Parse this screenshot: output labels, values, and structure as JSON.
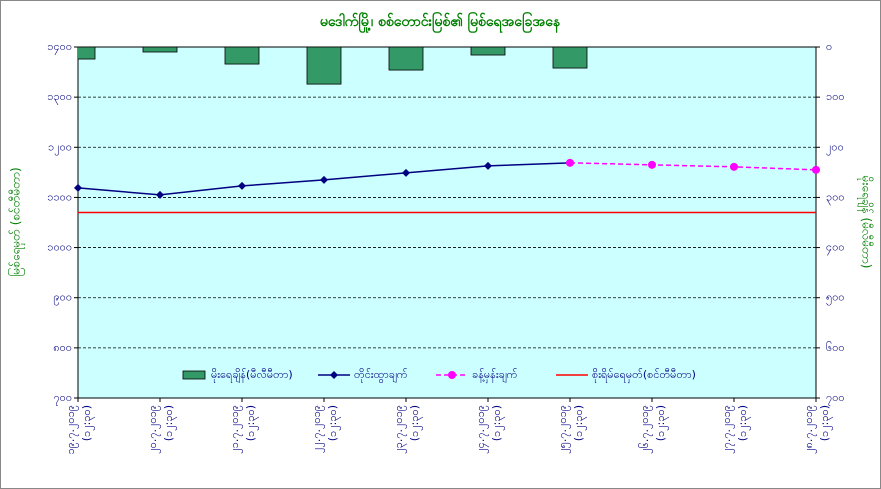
{
  "chart_data": {
    "type": "combo",
    "title": "မဒေါက်မြို့၊ စစ်တောင်းမြစ်၏ မြစ်ရေအခြေအနေ",
    "ylabel": "မြစ်ရေမှတ် (စင်တီမီတာ)",
    "y2label": "မိုးရေချိန် (မီလီမီတာ)",
    "categories": [
      [
        "၁၉.၇.၂၀၁၉",
        "(၁၂:၃၀)"
      ],
      [
        "၂၀.၇.၂၀၁၉",
        "(၁၂:၃၀)"
      ],
      [
        "၂၁.၇.၂၀၁၉",
        "(၁၂:၃၀)"
      ],
      [
        "၂၂.၇.၂၀၁၉",
        "(၁၂:၃၀)"
      ],
      [
        "၂၃.၇.၂၀၁၉",
        "(၁၂:၃၀)"
      ],
      [
        "၂၄.၇.၂၀၁၉",
        "(၁၂:၃၀)"
      ],
      [
        "၂၅.၇.၂၀၁၉",
        "(၁၂:၃၀)"
      ],
      [
        "၂၆.၇.၂၀၁၉",
        "(၁၂:၃၀)"
      ],
      [
        "၂၇.၇.၂၀၁၉",
        "(၁၂:၃၀)"
      ],
      [
        "၂၈.၇.၂၀၁၉",
        "(၁၂:၃၀)"
      ]
    ],
    "ylim": [
      700,
      1400
    ],
    "yticks": [
      {
        "value": 700,
        "label": "၇၀၀"
      },
      {
        "value": 800,
        "label": "၈၀၀"
      },
      {
        "value": 900,
        "label": "၉၀၀"
      },
      {
        "value": 1000,
        "label": "၁၀၀၀"
      },
      {
        "value": 1100,
        "label": "၁၁၀၀"
      },
      {
        "value": 1200,
        "label": "၁၂၀၀"
      },
      {
        "value": 1300,
        "label": "၁၃၀၀"
      },
      {
        "value": 1400,
        "label": "၁၄၀၀"
      }
    ],
    "y2lim": [
      700,
      0
    ],
    "y2ticks": [
      {
        "value": 0,
        "label": "၀"
      },
      {
        "value": 100,
        "label": "၁၀၀"
      },
      {
        "value": 200,
        "label": "၂၀၀"
      },
      {
        "value": 300,
        "label": "၃၀၀"
      },
      {
        "value": 400,
        "label": "၄၀၀"
      },
      {
        "value": 500,
        "label": "၅၀၀"
      },
      {
        "value": 600,
        "label": "၆၀၀"
      },
      {
        "value": 700,
        "label": "၇၀၀"
      }
    ],
    "grid": true,
    "series": [
      {
        "name": "မိုးရေချိန်(မီလီမီတာ)",
        "kind": "bar",
        "axis": "y2",
        "color": "#339966",
        "values": [
          24,
          10,
          34,
          74,
          46,
          16,
          42,
          null,
          null,
          null
        ]
      },
      {
        "name": "တိုင်းထွာချက်",
        "kind": "line",
        "color": "#000080",
        "values": [
          1119,
          1105,
          1123,
          1135,
          1149,
          1163,
          1169,
          null,
          null,
          null
        ]
      },
      {
        "name": "ခန့်မှန်းချက်",
        "kind": "dashed",
        "color": "#ff00ff",
        "values": [
          null,
          null,
          null,
          null,
          null,
          null,
          1169,
          1165,
          1161,
          1155
        ]
      },
      {
        "name": "စိုးရိမ်ရေမှတ်(စင်တီမီတာ)",
        "kind": "level",
        "color": "#ff0000",
        "values": [
          1070,
          1070,
          1070,
          1070,
          1070,
          1070,
          1070,
          1070,
          1070,
          1070
        ]
      }
    ]
  }
}
